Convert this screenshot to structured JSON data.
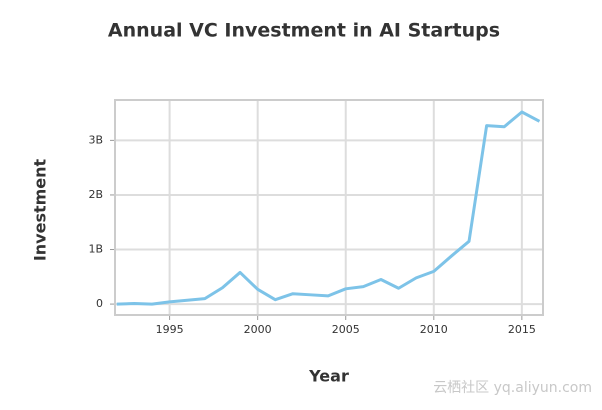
{
  "chart_data": {
    "type": "line",
    "title": "Annual VC Investment in AI Startups",
    "x_label": "Year",
    "y_label": "Investment",
    "x": [
      1992,
      1993,
      1994,
      1995,
      1996,
      1997,
      1998,
      1999,
      2000,
      2001,
      2002,
      2003,
      2004,
      2005,
      2006,
      2007,
      2008,
      2009,
      2010,
      2011,
      2012,
      2013,
      2014,
      2015,
      2016
    ],
    "series": [
      {
        "name": "Investment",
        "color": "#7dc3e8",
        "values": [
          0,
          0.01,
          0,
          0.04,
          0.07,
          0.1,
          0.3,
          0.58,
          0.27,
          0.08,
          0.19,
          0.17,
          0.15,
          0.28,
          0.32,
          0.45,
          0.29,
          0.48,
          0.6,
          0.88,
          1.15,
          3.27,
          3.25,
          3.52,
          3.35
        ]
      }
    ],
    "xlim": [
      1991.9,
      2016.2
    ],
    "xticks": [
      1995,
      2000,
      2005,
      2010,
      2015
    ],
    "ylim": [
      -0.2,
      3.74
    ],
    "yticks": [
      0,
      {
        "value": 1,
        "label": "1B"
      },
      {
        "value": 2,
        "label": "2B"
      },
      {
        "value": 3,
        "label": "3B"
      }
    ],
    "grid": true
  },
  "watermark": "云栖社区 yq.aliyun.com"
}
